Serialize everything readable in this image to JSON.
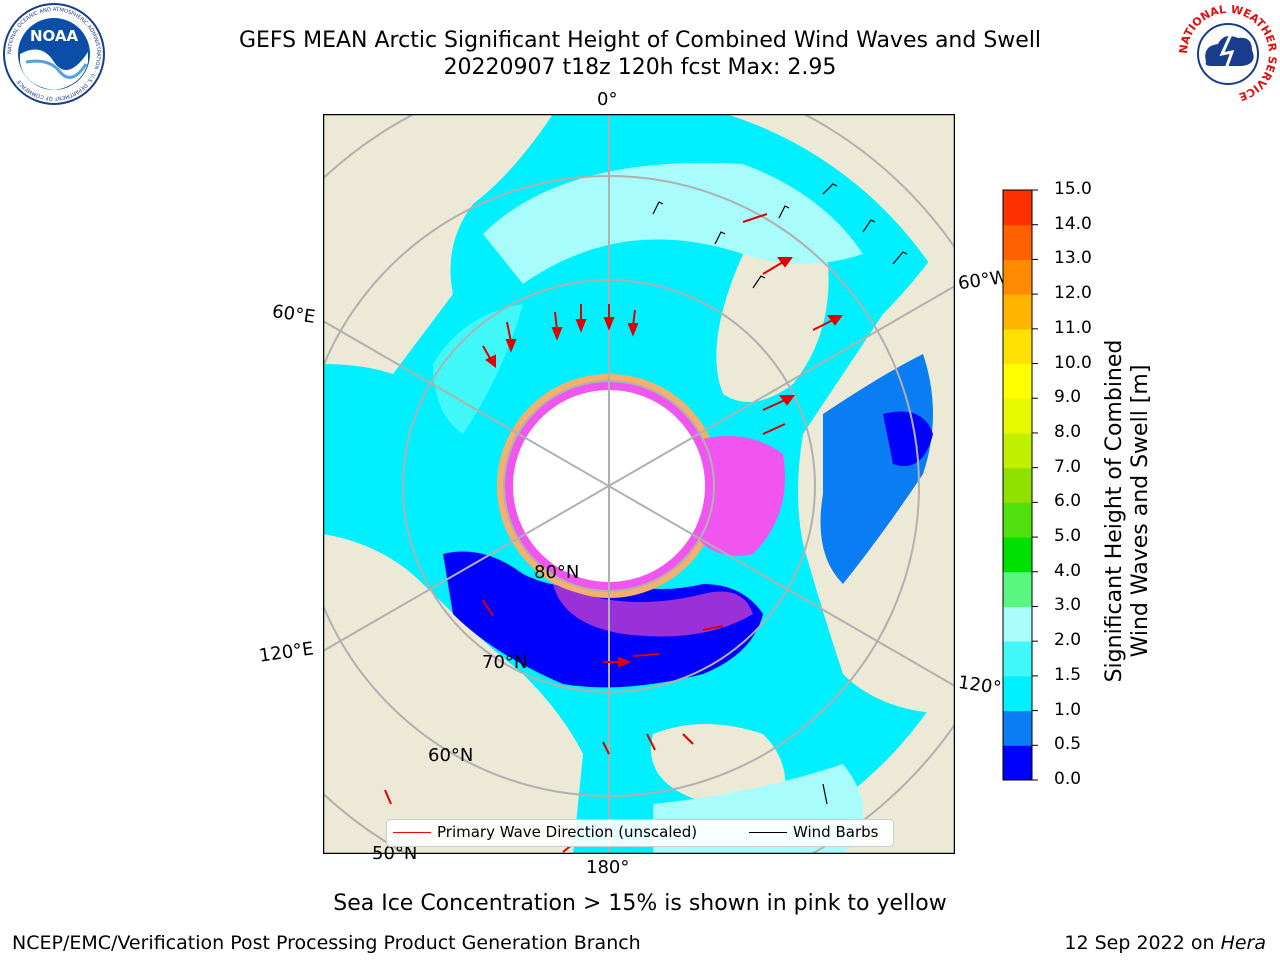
{
  "header": {
    "title_line1": "GEFS MEAN Arctic Significant Height of Combined Wind Waves and Swell",
    "title_line2": "20220907 t18z 120h fcst   Max: 2.95"
  },
  "logos": {
    "noaa_text": "NOAA",
    "noaa_ring_text": "NATIONAL OCEANIC AND ATMOSPHERIC ADMINISTRATION · U.S. DEPARTMENT OF COMMERCE",
    "nws_ring_text": "NATIONAL WEATHER SERVICE"
  },
  "map": {
    "longitude_labels": {
      "top": "0°",
      "bottom": "180°",
      "left_upper": "60°E",
      "left_lower": "120°E",
      "right_upper": "60°W",
      "right_lower": "120°"
    },
    "latitude_labels": {
      "lat80": "80°N",
      "lat70": "70°N",
      "lat60": "60°N",
      "lat50": "50°N"
    },
    "colors": {
      "land": "#ede9d7",
      "pole_hole": "#ffffff",
      "grid": "#b0b0b0",
      "ice_pink": "#f055f0",
      "ice_orange": "#f5b06e",
      "ice_purple": "#9a30d8"
    }
  },
  "legend": {
    "wave_direction_label": "Primary Wave Direction (unscaled)",
    "wind_barbs_label": "Wind Barbs",
    "wave_direction_color": "#ff0000",
    "wind_barbs_color": "#000000"
  },
  "colorbar": {
    "label_line1": "Significant Height of Combined",
    "label_line2": "Wind Waves and Swell [m]",
    "ticks": [
      "0.0",
      "0.5",
      "1.0",
      "1.5",
      "2.0",
      "3.0",
      "4.0",
      "5.0",
      "6.0",
      "7.0",
      "8.0",
      "9.0",
      "10.0",
      "11.0",
      "12.0",
      "13.0",
      "14.0",
      "15.0"
    ],
    "colors": [
      "#0000ff",
      "#0a7df5",
      "#00f0ff",
      "#40f8f8",
      "#a8fcfc",
      "#58f880",
      "#00e000",
      "#50e010",
      "#90e000",
      "#c0f000",
      "#e8f800",
      "#ffff00",
      "#ffe000",
      "#ffb400",
      "#ff8a00",
      "#ff6000",
      "#ff3000",
      "#ff0000"
    ]
  },
  "subtitle": "Sea Ice Concentration > 15% is shown in pink to yellow",
  "footer": {
    "left": "NCEP/EMC/Verification Post Processing Product Generation Branch",
    "right_date": "12 Sep 2022 on ",
    "right_machine": "Hera"
  }
}
